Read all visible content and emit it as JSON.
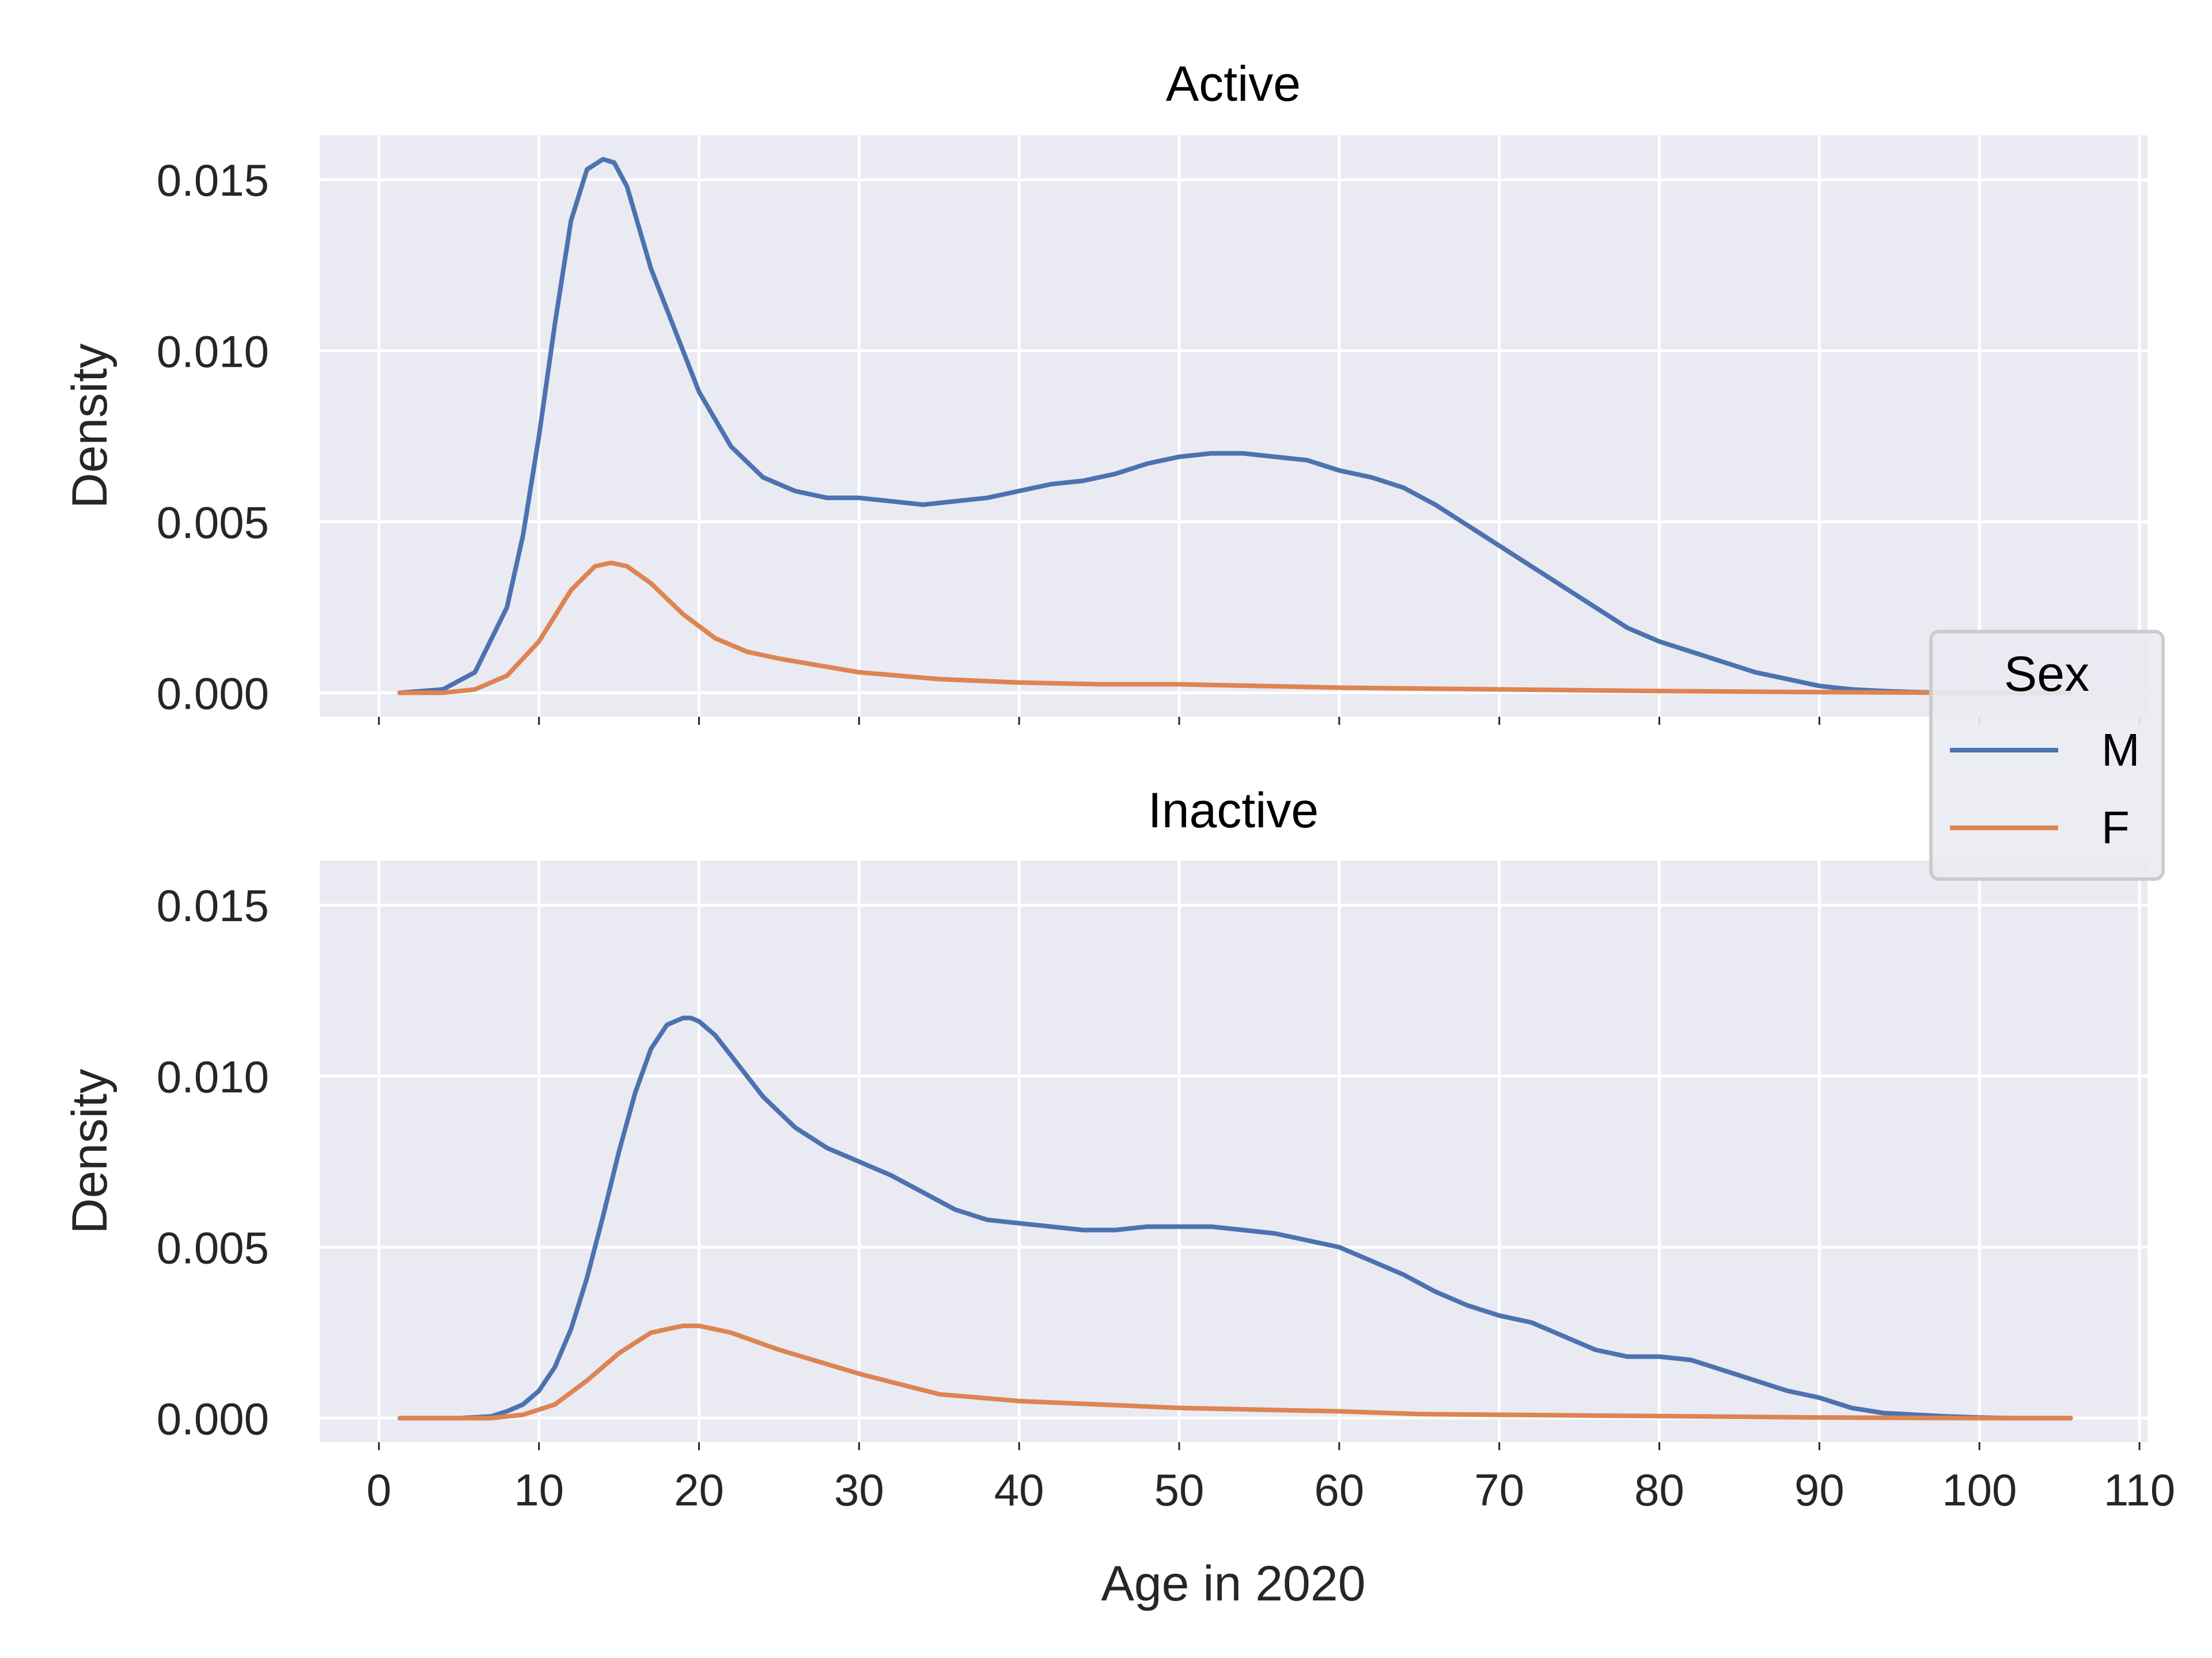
{
  "chart_data": [
    {
      "type": "line",
      "title": "Active",
      "xlabel": "",
      "ylabel": "Density",
      "xlim": [
        -3.7,
        110.5
      ],
      "ylim": [
        -0.0007,
        0.0163
      ],
      "xticks": [
        0,
        10,
        20,
        30,
        40,
        50,
        60,
        70,
        80,
        90,
        100,
        110
      ],
      "xtick_labels": [],
      "yticks": [
        0.0,
        0.005,
        0.01,
        0.015
      ],
      "ytick_labels": [
        "0.000",
        "0.005",
        "0.010",
        "0.015"
      ],
      "grid": true,
      "series": [
        {
          "name": "M",
          "color": "#4c72b0",
          "x": [
            1.3,
            4,
            6,
            8,
            9,
            10,
            11,
            12,
            13,
            14,
            14.7,
            15.5,
            17,
            19,
            20,
            22,
            24,
            26,
            28,
            30,
            32,
            34,
            36,
            38,
            40,
            42,
            44,
            46,
            48,
            50,
            52,
            54,
            56,
            58,
            60,
            62,
            64,
            66,
            68,
            70,
            72,
            74,
            76,
            78,
            80,
            82,
            84,
            86,
            88,
            90,
            92,
            94,
            96,
            98,
            100,
            102,
            104,
            105.7
          ],
          "y": [
            0.0,
            0.0001,
            0.0006,
            0.0025,
            0.0046,
            0.0075,
            0.0108,
            0.0138,
            0.0153,
            0.0156,
            0.0155,
            0.0148,
            0.0124,
            0.01,
            0.0088,
            0.0072,
            0.0063,
            0.0059,
            0.0057,
            0.0057,
            0.0056,
            0.0055,
            0.0056,
            0.0057,
            0.0059,
            0.0061,
            0.0062,
            0.0064,
            0.0067,
            0.0069,
            0.007,
            0.007,
            0.0069,
            0.0068,
            0.0065,
            0.0063,
            0.006,
            0.0055,
            0.0049,
            0.0043,
            0.0037,
            0.0031,
            0.0025,
            0.0019,
            0.0015,
            0.0012,
            0.0009,
            0.0006,
            0.0004,
            0.0002,
            0.0001,
            5e-05,
            2e-05,
            0.0,
            0.0,
            0.0,
            0.0,
            0.0
          ]
        },
        {
          "name": "F",
          "color": "#dd8452",
          "x": [
            1.3,
            4,
            6,
            8,
            10,
            12,
            13.5,
            14.5,
            15.5,
            17,
            19,
            21,
            23,
            25,
            30,
            35,
            40,
            45,
            50,
            55,
            60,
            70,
            80,
            90,
            100,
            105.7
          ],
          "y": [
            0.0,
            0.0,
            0.0001,
            0.0005,
            0.0015,
            0.003,
            0.0037,
            0.0038,
            0.0037,
            0.0032,
            0.0023,
            0.0016,
            0.0012,
            0.001,
            0.0006,
            0.0004,
            0.0003,
            0.00025,
            0.00025,
            0.0002,
            0.00015,
            0.0001,
            5e-05,
            2e-05,
            0.0,
            0.0
          ]
        }
      ]
    },
    {
      "type": "line",
      "title": "Inactive",
      "xlabel": "Age in 2020",
      "ylabel": "Density",
      "xlim": [
        -3.7,
        110.5
      ],
      "ylim": [
        -0.0007,
        0.0163
      ],
      "xticks": [
        0,
        10,
        20,
        30,
        40,
        50,
        60,
        70,
        80,
        90,
        100,
        110
      ],
      "xtick_labels": [
        "0",
        "10",
        "20",
        "30",
        "40",
        "50",
        "60",
        "70",
        "80",
        "90",
        "100",
        "110"
      ],
      "yticks": [
        0.0,
        0.005,
        0.01,
        0.015
      ],
      "ytick_labels": [
        "0.000",
        "0.005",
        "0.010",
        "0.015"
      ],
      "grid": true,
      "series": [
        {
          "name": "M",
          "color": "#4c72b0",
          "x": [
            1.3,
            5,
            7,
            8,
            9,
            10,
            11,
            12,
            13,
            14,
            15,
            16,
            17,
            18,
            19,
            19.5,
            20,
            21,
            22,
            24,
            26,
            28,
            30,
            32,
            34,
            36,
            38,
            40,
            42,
            44,
            46,
            48,
            50,
            52,
            54,
            56,
            58,
            60,
            62,
            64,
            66,
            68,
            70,
            72,
            74,
            76,
            78,
            80,
            82,
            84,
            86,
            88,
            90,
            92,
            94,
            96,
            98,
            100,
            102,
            105.7
          ],
          "y": [
            0.0,
            0.0,
            5e-05,
            0.0002,
            0.0004,
            0.0008,
            0.0015,
            0.0026,
            0.0041,
            0.0059,
            0.0078,
            0.0095,
            0.0108,
            0.0115,
            0.0117,
            0.0117,
            0.0116,
            0.0112,
            0.0106,
            0.0094,
            0.0085,
            0.0079,
            0.0075,
            0.0071,
            0.0066,
            0.0061,
            0.0058,
            0.0057,
            0.0056,
            0.0055,
            0.0055,
            0.0056,
            0.0056,
            0.0056,
            0.0055,
            0.0054,
            0.0052,
            0.005,
            0.0046,
            0.0042,
            0.0037,
            0.0033,
            0.003,
            0.0028,
            0.0024,
            0.002,
            0.0018,
            0.0018,
            0.0017,
            0.0014,
            0.0011,
            0.0008,
            0.0006,
            0.0003,
            0.00015,
            0.0001,
            5e-05,
            2e-05,
            0.0,
            0.0
          ]
        },
        {
          "name": "F",
          "color": "#dd8452",
          "x": [
            1.3,
            5,
            7,
            9,
            11,
            13,
            15,
            17,
            19,
            20,
            22,
            25,
            30,
            35,
            40,
            45,
            50,
            55,
            60,
            65,
            70,
            80,
            90,
            100,
            105.7
          ],
          "y": [
            0.0,
            0.0,
            0.0,
            0.0001,
            0.0004,
            0.0011,
            0.0019,
            0.0025,
            0.0027,
            0.0027,
            0.0025,
            0.002,
            0.0013,
            0.0007,
            0.0005,
            0.0004,
            0.0003,
            0.00025,
            0.0002,
            0.00012,
            0.0001,
            6e-05,
            2e-05,
            0.0,
            0.0
          ]
        }
      ]
    }
  ],
  "legend": {
    "title": "Sex",
    "placement": "center-right",
    "items": [
      {
        "label": "M",
        "color": "#4c72b0"
      },
      {
        "label": "F",
        "color": "#dd8452"
      }
    ]
  },
  "theme": {
    "panel_background": "#eaeaf2",
    "grid_color": "#ffffff"
  }
}
